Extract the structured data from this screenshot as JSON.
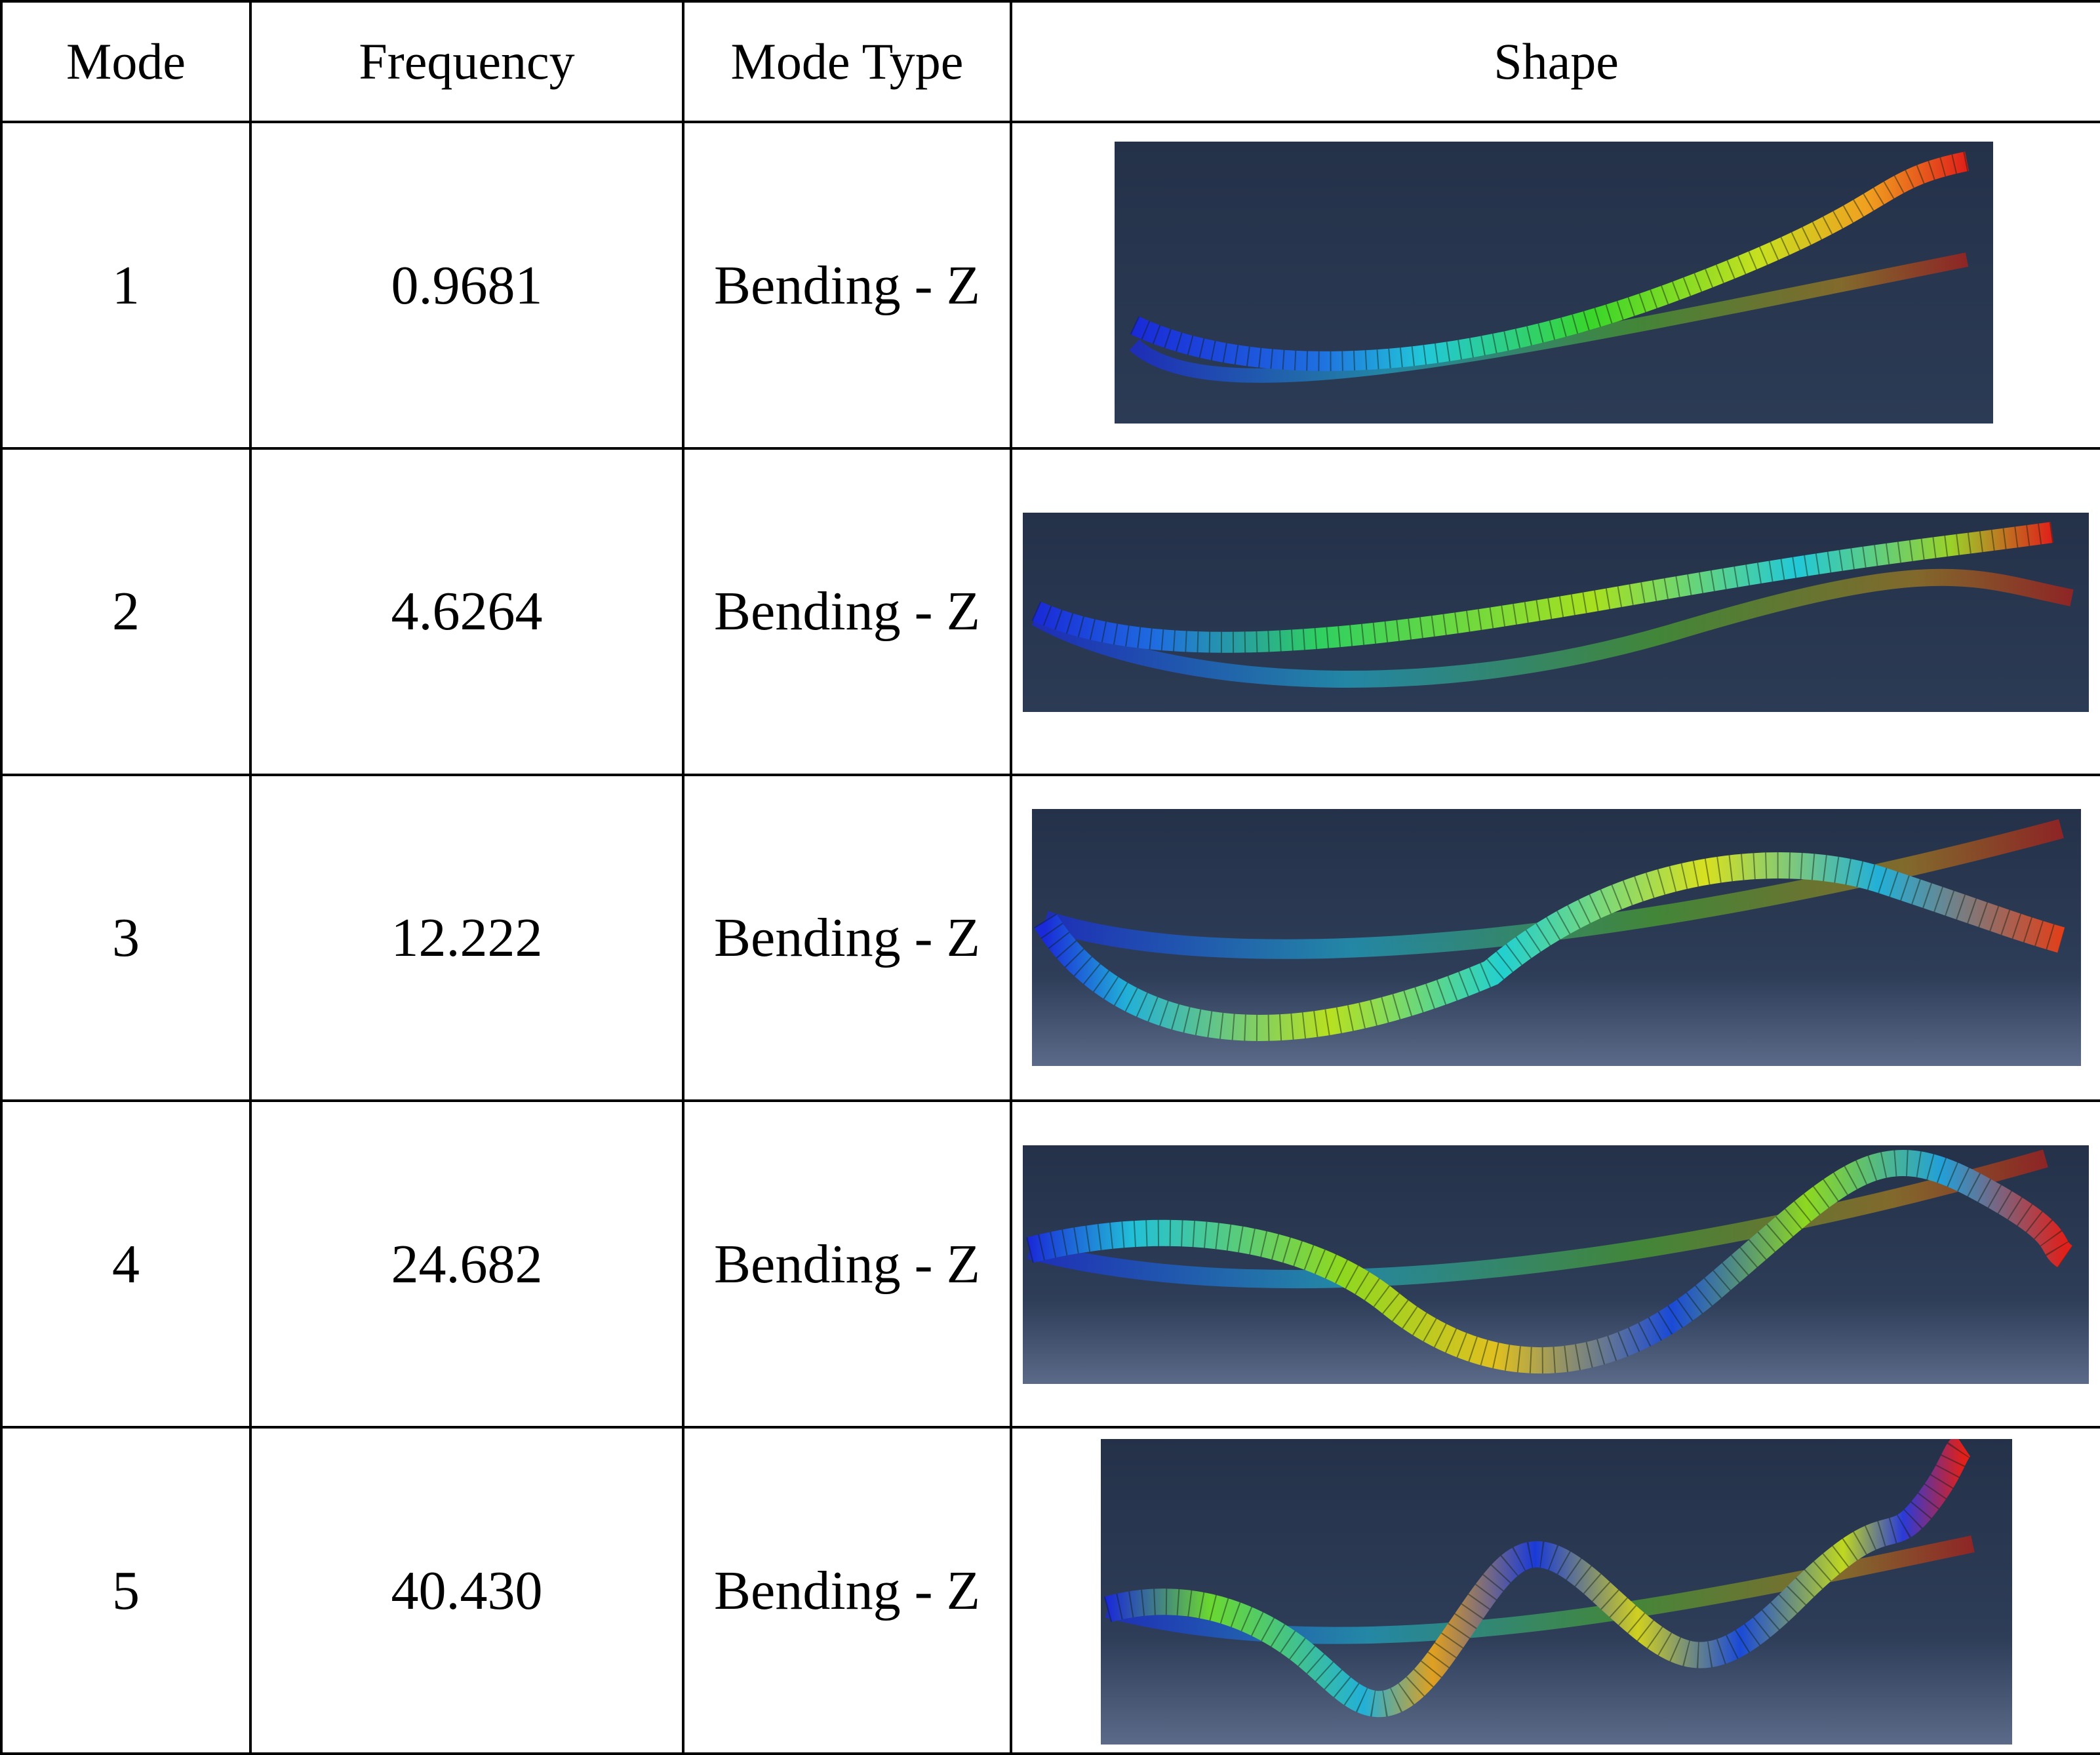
{
  "table": {
    "headers": [
      "Mode",
      "Frequency",
      "Mode Type",
      "Shape"
    ],
    "rows": [
      {
        "mode": "1",
        "frequency": "0.9681",
        "type": "Bending - Z"
      },
      {
        "mode": "2",
        "frequency": "4.6264",
        "type": "Bending - Z"
      },
      {
        "mode": "3",
        "frequency": "12.222",
        "type": "Bending - Z"
      },
      {
        "mode": "4",
        "frequency": "24.682",
        "type": "Bending - Z"
      },
      {
        "mode": "5",
        "frequency": "40.430",
        "type": "Bending - Z"
      }
    ]
  },
  "colors": {
    "viewport_top": "#243149",
    "viewport_bottom": "#5a6a88",
    "contour_low": "#1a2ad8",
    "contour_mid": "#3ad62a",
    "contour_high": "#e0201a",
    "mesh_line": "#102010"
  }
}
